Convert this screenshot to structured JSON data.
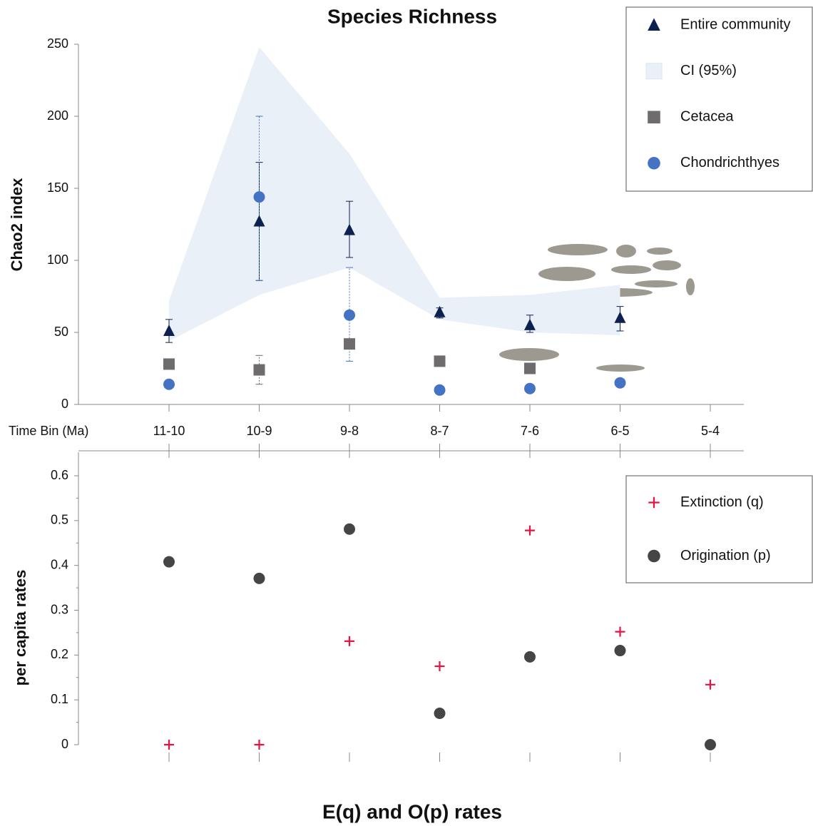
{
  "chart_data": [
    {
      "type": "scatter",
      "title": "Species Richness",
      "x_label": "Time Bin (Ma)",
      "y_label": "Chao2 index",
      "categories": [
        "11-10",
        "10-9",
        "9-8",
        "8-7",
        "7-6",
        "6-5",
        "5-4"
      ],
      "ylim": [
        0,
        250
      ],
      "yticks": [
        0,
        50,
        100,
        150,
        200,
        250
      ],
      "series": [
        {
          "name": "Entire community",
          "marker": "triangle",
          "color": "#0d2150",
          "values": [
            51,
            127,
            121,
            64,
            55,
            60,
            null
          ],
          "lower": [
            43,
            86,
            102,
            60,
            50,
            51,
            null
          ],
          "upper": [
            59,
            168,
            141,
            67,
            62,
            68,
            null
          ]
        },
        {
          "name": "CI (95%)",
          "marker": "band",
          "color": "#e9f0f8",
          "lower": [
            44,
            76,
            95,
            59,
            50,
            48,
            null
          ],
          "upper": [
            72,
            248,
            174,
            74,
            76,
            83,
            null
          ]
        },
        {
          "name": "Cetacea",
          "marker": "square",
          "color": "#6e6c6c",
          "values": [
            28,
            24,
            42,
            30,
            25,
            null,
            null
          ],
          "lower": [
            null,
            14,
            null,
            null,
            null,
            null,
            null
          ],
          "upper": [
            null,
            34,
            null,
            null,
            null,
            null,
            null
          ]
        },
        {
          "name": "Chondrichthyes",
          "marker": "circle",
          "color": "#4472c4",
          "values": [
            14,
            144,
            62,
            10,
            11,
            15,
            null
          ],
          "lower": [
            null,
            86,
            30,
            null,
            null,
            null,
            null
          ],
          "upper": [
            null,
            200,
            95,
            null,
            null,
            null,
            null
          ]
        }
      ]
    },
    {
      "type": "scatter",
      "title": "E(q) and O(p) rates",
      "y_label": "per capita rates",
      "ylim": [
        0,
        0.65
      ],
      "yticks": [
        0,
        0.1,
        0.2,
        0.3,
        0.4,
        0.5,
        0.6
      ],
      "series": [
        {
          "name": "Extinction (q)",
          "marker": "plus",
          "color": "#e8133f",
          "values": [
            0,
            0,
            0.231,
            0.175,
            0.478,
            0.252,
            0.134
          ]
        },
        {
          "name": "Origination (p)",
          "marker": "circle",
          "color": "#454545",
          "values": [
            0.408,
            0.371,
            0.481,
            0.07,
            0.196,
            0.21,
            0
          ]
        }
      ]
    }
  ]
}
